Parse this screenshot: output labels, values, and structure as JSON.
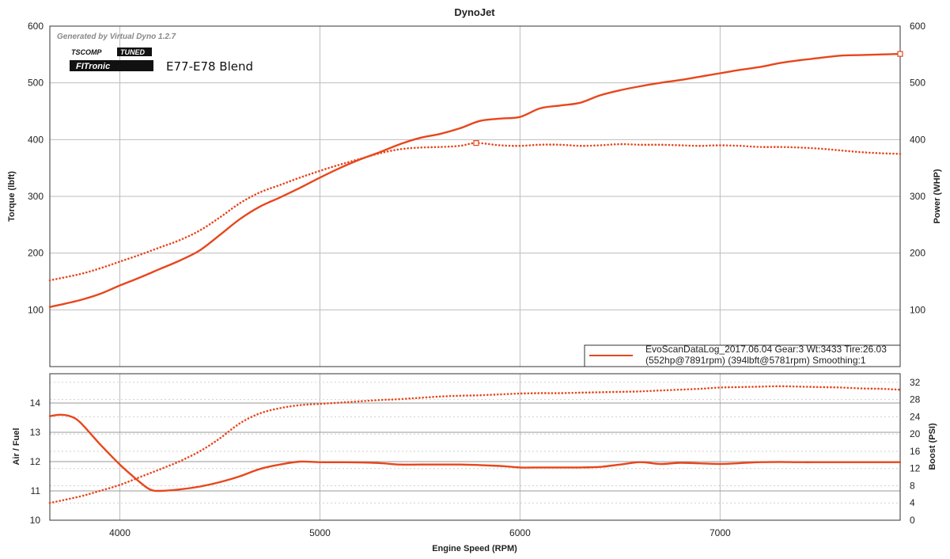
{
  "chart_data": [
    {
      "type": "line",
      "title": "DynoJet",
      "watermark": "Generated by Virtual Dyno 1.2.7",
      "logos": [
        "TSCOMP",
        "TUNED",
        "FITronic"
      ],
      "annotation": "E77-E78 Blend",
      "xlabel": "Engine Speed (RPM)",
      "ylabel_left": "Torque (lbft)",
      "ylabel_right": "Power (WHP)",
      "xlim": [
        3650,
        7900
      ],
      "ylim_left": [
        0,
        600
      ],
      "ylim_right": [
        0,
        600
      ],
      "x_ticks": [
        4000,
        5000,
        6000,
        7000
      ],
      "y_ticks_left": [
        100,
        200,
        300,
        400,
        500,
        600
      ],
      "y_ticks_right": [
        100,
        200,
        300,
        400,
        500,
        600
      ],
      "grid": true,
      "legend_position": "bottom-right",
      "legend": [
        "EvoScanDataLog_2017.06.04 Gear:3 Wt:3433 Tire:26.03",
        "(552hp@7891rpm) (394lbft@5781rpm) Smoothing:1"
      ],
      "color": "#e8461c",
      "series": [
        {
          "axis": "right",
          "style": "solid",
          "x": [
            3650,
            3800,
            3900,
            4000,
            4100,
            4200,
            4300,
            4400,
            4500,
            4600,
            4700,
            4800,
            4900,
            5000,
            5100,
            5200,
            5300,
            5400,
            5500,
            5600,
            5700,
            5800,
            5900,
            6000,
            6100,
            6200,
            6300,
            6400,
            6500,
            6600,
            6700,
            6800,
            6900,
            7000,
            7100,
            7200,
            7300,
            7400,
            7500,
            7600,
            7700,
            7800,
            7900
          ],
          "values": [
            105,
            117,
            128,
            143,
            157,
            172,
            187,
            205,
            232,
            260,
            282,
            298,
            315,
            333,
            350,
            365,
            378,
            392,
            403,
            410,
            420,
            433,
            437,
            440,
            455,
            460,
            465,
            478,
            487,
            494,
            500,
            505,
            511,
            517,
            523,
            528,
            535,
            540,
            544,
            548,
            549,
            550,
            551
          ]
        },
        {
          "axis": "left",
          "style": "dotted",
          "x": [
            3650,
            3800,
            3900,
            4000,
            4100,
            4200,
            4300,
            4400,
            4500,
            4600,
            4700,
            4800,
            4900,
            5000,
            5100,
            5200,
            5300,
            5400,
            5500,
            5600,
            5700,
            5781,
            5900,
            6000,
            6100,
            6200,
            6300,
            6400,
            6500,
            6600,
            6700,
            6800,
            6900,
            7000,
            7100,
            7200,
            7300,
            7400,
            7500,
            7600,
            7700,
            7800,
            7900
          ],
          "values": [
            152,
            163,
            173,
            185,
            197,
            210,
            223,
            240,
            263,
            288,
            307,
            320,
            333,
            345,
            356,
            366,
            376,
            383,
            386,
            387,
            389,
            394,
            390,
            389,
            391,
            391,
            389,
            390,
            392,
            391,
            391,
            390,
            389,
            390,
            389,
            387,
            387,
            386,
            384,
            381,
            378,
            376,
            375
          ]
        }
      ]
    },
    {
      "type": "line",
      "ylabel_left": "Air / Fuel",
      "ylabel_right": "Boost (PSI)",
      "xlim": [
        3650,
        7900
      ],
      "ylim_left": [
        10,
        15
      ],
      "ylim_right": [
        0,
        34
      ],
      "x_ticks": [
        4000,
        5000,
        6000,
        7000
      ],
      "y_ticks_left": [
        10,
        11,
        12,
        13,
        14
      ],
      "y_ticks_right": [
        0,
        4,
        8,
        12,
        16,
        20,
        24,
        28,
        32
      ],
      "grid": true,
      "color": "#e8461c",
      "series": [
        {
          "axis": "left",
          "style": "solid",
          "x": [
            3650,
            3700,
            3750,
            3800,
            3900,
            4000,
            4100,
            4150,
            4200,
            4300,
            4400,
            4500,
            4600,
            4700,
            4800,
            4900,
            5000,
            5100,
            5200,
            5300,
            5400,
            5500,
            5600,
            5700,
            5800,
            5900,
            6000,
            6100,
            6200,
            6300,
            6400,
            6500,
            6600,
            6700,
            6800,
            6900,
            7000,
            7100,
            7200,
            7300,
            7400,
            7500,
            7600,
            7700,
            7800,
            7900
          ],
          "values": [
            13.55,
            13.6,
            13.55,
            13.35,
            12.6,
            11.9,
            11.3,
            11.05,
            11.0,
            11.05,
            11.15,
            11.3,
            11.5,
            11.75,
            11.9,
            12.0,
            11.98,
            11.98,
            11.97,
            11.95,
            11.9,
            11.9,
            11.9,
            11.9,
            11.88,
            11.85,
            11.8,
            11.8,
            11.8,
            11.8,
            11.82,
            11.9,
            11.98,
            11.92,
            11.96,
            11.94,
            11.92,
            11.95,
            11.98,
            11.99,
            11.98,
            11.98,
            11.98,
            11.98,
            11.98,
            11.98
          ]
        },
        {
          "axis": "right",
          "style": "dotted",
          "x": [
            3650,
            3800,
            3900,
            4000,
            4100,
            4200,
            4300,
            4400,
            4500,
            4600,
            4700,
            4800,
            4900,
            5000,
            5100,
            5200,
            5300,
            5400,
            5500,
            5600,
            5700,
            5800,
            5900,
            6000,
            6100,
            6200,
            6300,
            6400,
            6500,
            6600,
            6700,
            6800,
            6900,
            7000,
            7100,
            7200,
            7300,
            7400,
            7500,
            7600,
            7700,
            7800,
            7900
          ],
          "values": [
            4,
            5.5,
            6.8,
            8.2,
            10,
            11.8,
            13.7,
            16,
            19,
            22.5,
            24.8,
            26,
            26.7,
            27,
            27.3,
            27.6,
            27.9,
            28.1,
            28.4,
            28.7,
            28.9,
            29,
            29.2,
            29.4,
            29.5,
            29.5,
            29.6,
            29.7,
            29.8,
            29.9,
            30.1,
            30.3,
            30.5,
            30.8,
            30.9,
            31,
            31.1,
            31,
            30.9,
            30.8,
            30.6,
            30.5,
            30.3
          ]
        }
      ]
    }
  ]
}
